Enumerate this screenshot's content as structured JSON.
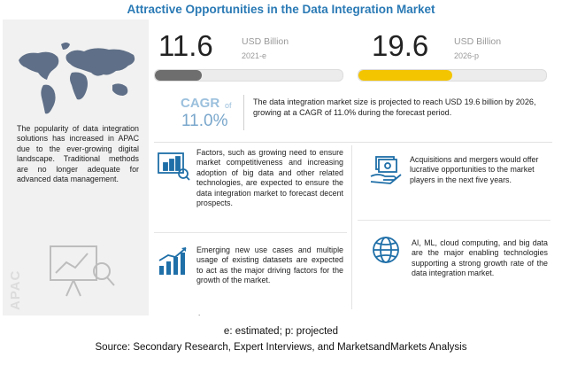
{
  "title": "Attractive Opportunities in the Data Integration Market",
  "market": {
    "current": {
      "value": "11.6",
      "unit": "USD Billion",
      "year": "2021-e",
      "fill_fraction": 0.25
    },
    "projected": {
      "value": "19.6",
      "unit": "USD Billion",
      "year": "2026-p",
      "fill_fraction": 0.5
    },
    "colors": {
      "current_bar": "#6e6e6e",
      "projected_bar": "#f3c400"
    }
  },
  "cagr": {
    "label": "CAGR",
    "of": "of",
    "value": "11.0%"
  },
  "summary": "The data integration market size is projected to reach USD 19.6 billion by 2026, growing at a CAGR of 11.0% during the forecast period.",
  "apac": {
    "label": "APAC",
    "description": "The popularity of data integration solutions has increased in APAC due to the ever-growing digital landscape. Traditional methods are no longer adequate for advanced data management."
  },
  "cards": [
    {
      "icon": "analytics-board-icon",
      "text": "Factors, such as growing need to ensure market competitiveness and increasing adoption of big data and other related technologies, are expected to ensure the data integration market to forecast decent prospects."
    },
    {
      "icon": "growth-chart-icon",
      "text": "Emerging new use cases and multiple usage of existing datasets are expected to act as the major driving factors for the growth of the market."
    },
    {
      "icon": "money-hand-icon",
      "text": "Acquisitions and mergers would offer lucrative opportunities to the market players in the next five years."
    },
    {
      "icon": "globe-network-icon",
      "text": "AI, ML, cloud computing, and big data are the major enabling technologies supporting a strong growth rate of the data integration market."
    }
  ],
  "dot": ".",
  "footnote": "e: estimated; p: projected",
  "source": "Source: Secondary Research, Expert Interviews, and MarketsandMarkets Analysis"
}
